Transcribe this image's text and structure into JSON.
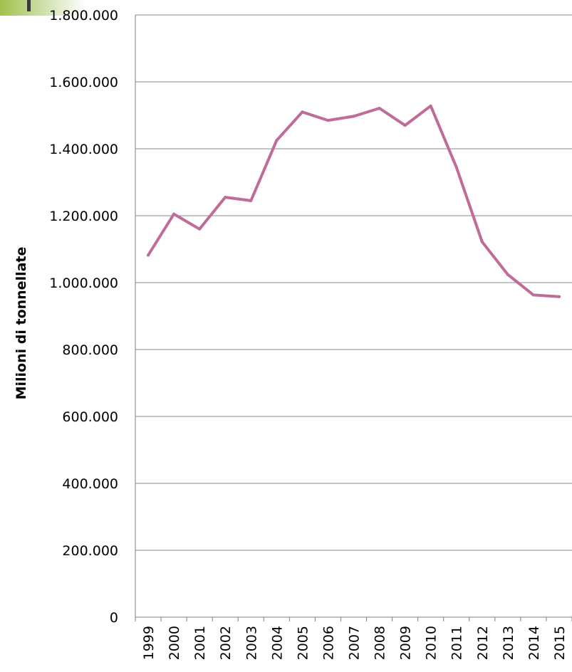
{
  "colors": {
    "line": "#c06c98",
    "grid": "#8a8a8a",
    "axis": "#7f7f7f",
    "corner_accent": "#9fc24c"
  },
  "chart_data": {
    "type": "line",
    "title": "",
    "xlabel": "",
    "ylabel": "Milioni di tonnellate",
    "x": [
      "1999",
      "2000",
      "2001",
      "2002",
      "2003",
      "2004",
      "2005",
      "2006",
      "2007",
      "2008",
      "2009",
      "2010",
      "2011",
      "2012",
      "2013",
      "2014",
      "2015"
    ],
    "series": [
      {
        "values": [
          1082000,
          1205000,
          1160000,
          1255000,
          1245000,
          1425000,
          1510000,
          1485000,
          1497000,
          1521000,
          1470000,
          1528000,
          1345000,
          1122000,
          1024000,
          963000,
          958000
        ]
      }
    ],
    "ylim": [
      0,
      1800000
    ],
    "yticks": [
      {
        "value": 0,
        "label": "0"
      },
      {
        "value": 200000,
        "label": "200.000"
      },
      {
        "value": 400000,
        "label": "400.000"
      },
      {
        "value": 600000,
        "label": "600.000"
      },
      {
        "value": 800000,
        "label": "800.000"
      },
      {
        "value": 1000000,
        "label": "1.000.000"
      },
      {
        "value": 1200000,
        "label": "1.200.000"
      },
      {
        "value": 1400000,
        "label": "1.400.000"
      },
      {
        "value": 1600000,
        "label": "1.600.000"
      },
      {
        "value": 1800000,
        "label": "1.800.000"
      }
    ],
    "grid": true,
    "legend": "none"
  }
}
